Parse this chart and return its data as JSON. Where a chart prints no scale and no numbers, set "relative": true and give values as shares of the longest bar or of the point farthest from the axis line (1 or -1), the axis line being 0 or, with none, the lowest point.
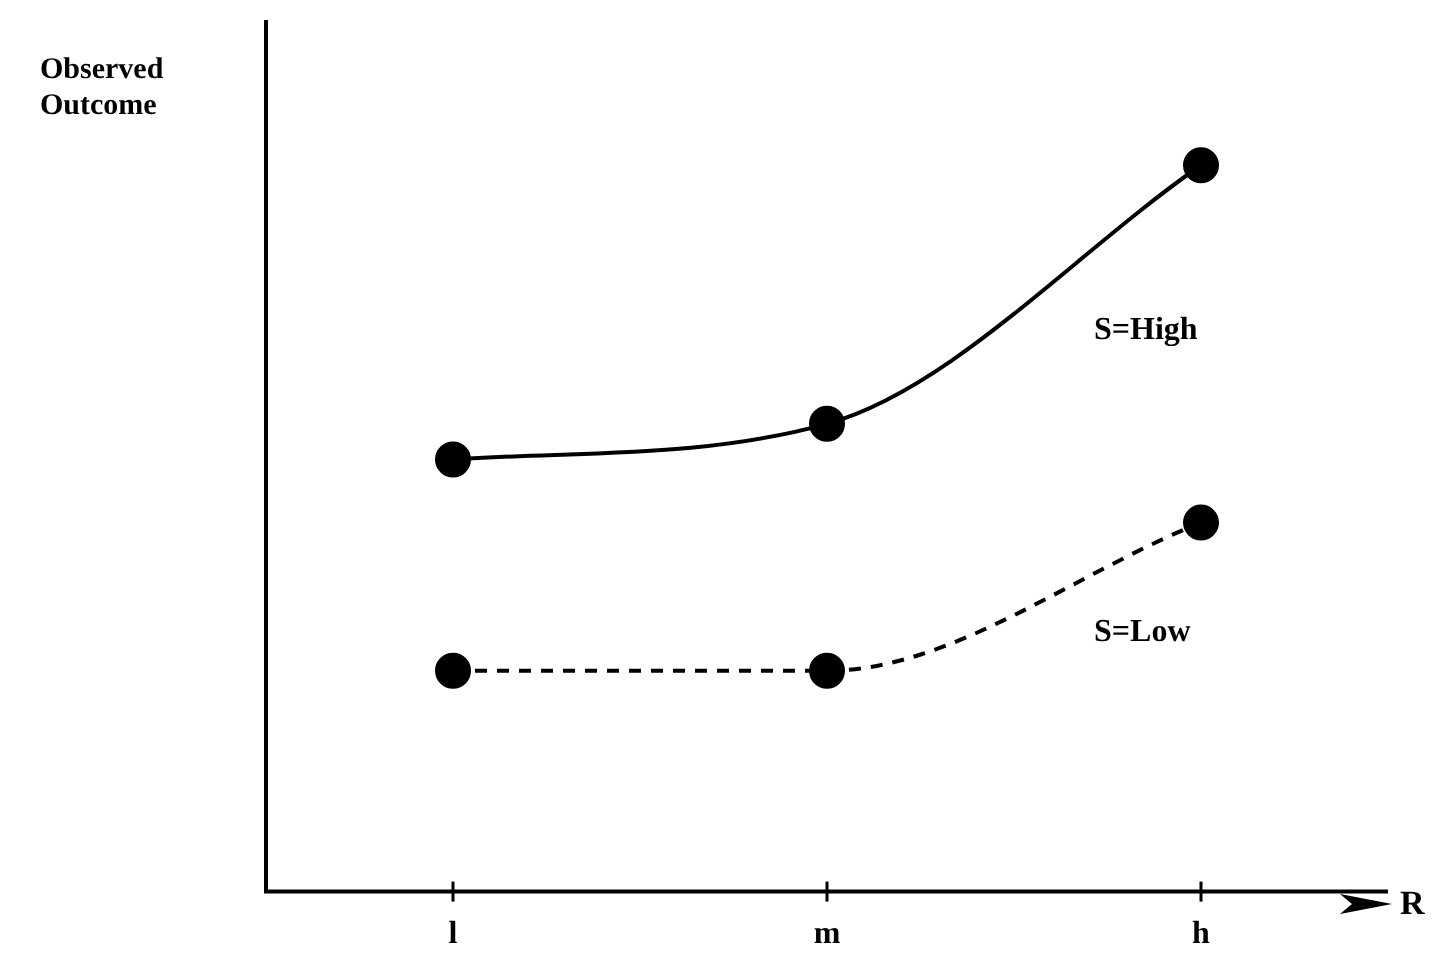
{
  "chart_data": {
    "type": "line",
    "relative": true,
    "ylabel": "Observed Outcome",
    "xlabel": "R",
    "categories": [
      "l",
      "m",
      "h"
    ],
    "marker": "circle",
    "grid": false,
    "legend": false,
    "series": [
      {
        "name": "S=High",
        "color": "#000000",
        "line_style": "solid",
        "values": [
          0.595,
          0.644,
          1
        ]
      },
      {
        "name": "S=Low",
        "color": "#000000",
        "line_style": "dashed",
        "values": [
          0.304,
          0.304,
          0.508
        ]
      }
    ]
  }
}
